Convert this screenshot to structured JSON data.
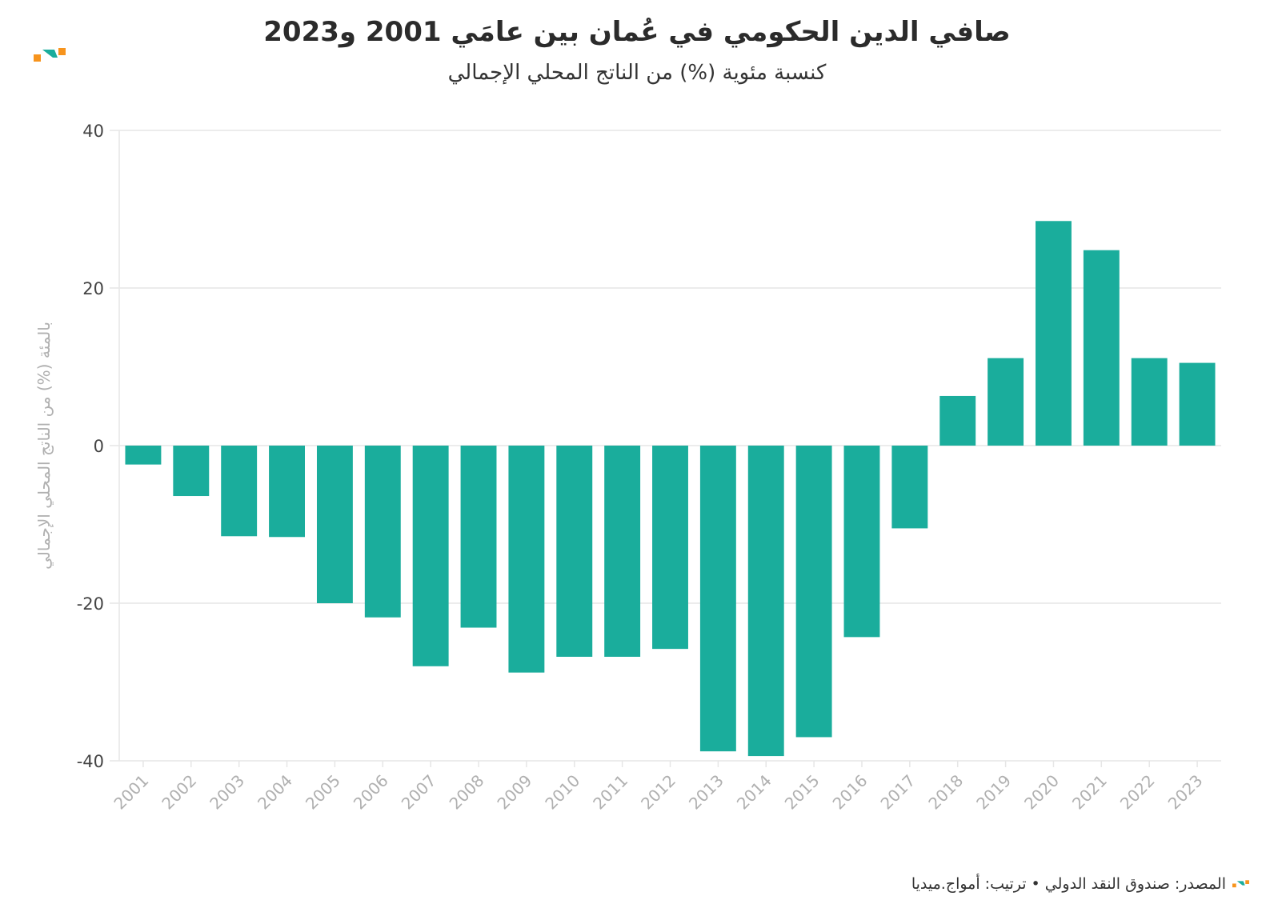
{
  "title": "صافي الدين الحكومي في عُمان بين عامَي 2001 و2023",
  "subtitle": "كنسبة مئوية (%) من الناتج المحلي الإجمالي",
  "footer": {
    "text": "المصدر: صندوق النقد الدولي • ترتيب: أمواج.ميديا"
  },
  "colors": {
    "bar": "#1aad9c",
    "logo_orange": "#f7941d",
    "logo_teal": "#1aad9c",
    "grid": "#e6e6e6",
    "axis_label": "#b0b0b0"
  },
  "chart_data": {
    "type": "bar",
    "ylabel": "بالمئة (%) من الناتج المحلي الإجمالي",
    "ylim": [
      -40,
      40
    ],
    "yticks": [
      40,
      20,
      0,
      -20,
      -40
    ],
    "grid": true,
    "categories": [
      "2001",
      "2002",
      "2003",
      "2004",
      "2005",
      "2006",
      "2007",
      "2008",
      "2009",
      "2010",
      "2011",
      "2012",
      "2013",
      "2014",
      "2015",
      "2016",
      "2017",
      "2018",
      "2019",
      "2020",
      "2021",
      "2022",
      "2023"
    ],
    "values": [
      -2.4,
      -6.4,
      -11.5,
      -11.6,
      -20.0,
      -21.8,
      -28.0,
      -23.1,
      -28.8,
      -26.8,
      -26.8,
      -25.8,
      -38.8,
      -39.4,
      -37.0,
      -24.3,
      -10.5,
      6.3,
      11.1,
      28.5,
      24.8,
      11.1,
      10.5
    ]
  }
}
